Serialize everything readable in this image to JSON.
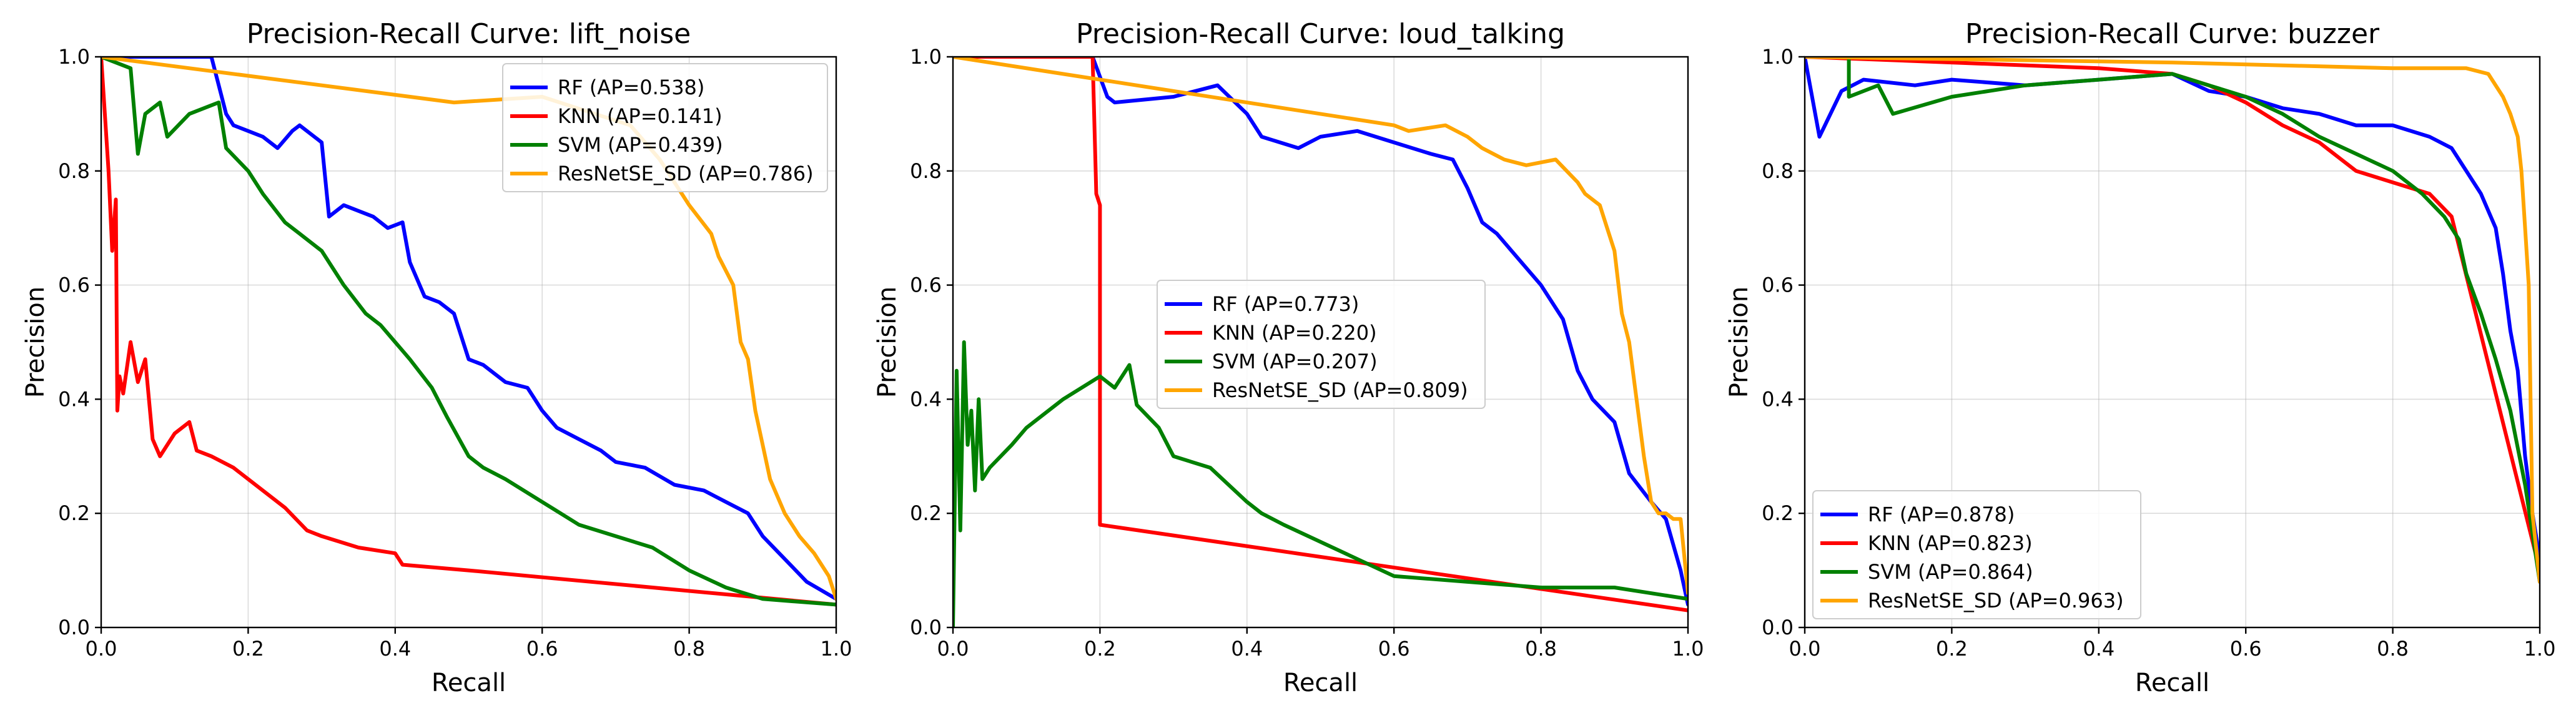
{
  "colors": {
    "RF": "#0000ff",
    "KNN": "#ff0000",
    "SVM": "#008000",
    "ResNetSE_SD": "#ffa500"
  },
  "chart_data": [
    {
      "type": "line",
      "title": "Precision-Recall Curve: lift_noise",
      "xlabel": "Recall",
      "ylabel": "Precision",
      "xlim": [
        0,
        1
      ],
      "ylim": [
        0,
        1
      ],
      "xticks": [
        "0.0",
        "0.2",
        "0.4",
        "0.6",
        "0.8",
        "1.0"
      ],
      "yticks": [
        "0.0",
        "0.2",
        "0.4",
        "0.6",
        "0.8",
        "1.0"
      ],
      "grid": true,
      "legend_position": "top-right",
      "series": [
        {
          "key": "RF",
          "name": "RF (AP=0.538)",
          "x": [
            0.0,
            0.15,
            0.17,
            0.18,
            0.2,
            0.22,
            0.24,
            0.26,
            0.27,
            0.3,
            0.31,
            0.33,
            0.35,
            0.37,
            0.39,
            0.41,
            0.42,
            0.44,
            0.46,
            0.48,
            0.5,
            0.52,
            0.55,
            0.58,
            0.6,
            0.62,
            0.65,
            0.68,
            0.7,
            0.74,
            0.78,
            0.82,
            0.85,
            0.88,
            0.9,
            0.93,
            0.96,
            1.0
          ],
          "y": [
            1.0,
            1.0,
            0.9,
            0.88,
            0.87,
            0.86,
            0.84,
            0.87,
            0.88,
            0.85,
            0.72,
            0.74,
            0.73,
            0.72,
            0.7,
            0.71,
            0.64,
            0.58,
            0.57,
            0.55,
            0.47,
            0.46,
            0.43,
            0.42,
            0.38,
            0.35,
            0.33,
            0.31,
            0.29,
            0.28,
            0.25,
            0.24,
            0.22,
            0.2,
            0.16,
            0.12,
            0.08,
            0.05
          ]
        },
        {
          "key": "KNN",
          "name": "KNN (AP=0.141)",
          "x": [
            0.0,
            0.01,
            0.015,
            0.02,
            0.022,
            0.025,
            0.03,
            0.04,
            0.05,
            0.06,
            0.07,
            0.08,
            0.1,
            0.12,
            0.13,
            0.15,
            0.18,
            0.2,
            0.22,
            0.25,
            0.28,
            0.3,
            0.35,
            0.4,
            0.41,
            0.5,
            1.0
          ],
          "y": [
            1.0,
            0.8,
            0.66,
            0.75,
            0.38,
            0.44,
            0.41,
            0.5,
            0.43,
            0.47,
            0.33,
            0.3,
            0.34,
            0.36,
            0.31,
            0.3,
            0.28,
            0.26,
            0.24,
            0.21,
            0.17,
            0.16,
            0.14,
            0.13,
            0.11,
            0.1,
            0.04
          ]
        },
        {
          "key": "SVM",
          "name": "SVM (AP=0.439)",
          "x": [
            0.0,
            0.04,
            0.05,
            0.06,
            0.08,
            0.09,
            0.12,
            0.16,
            0.17,
            0.2,
            0.22,
            0.25,
            0.27,
            0.3,
            0.33,
            0.36,
            0.38,
            0.4,
            0.42,
            0.45,
            0.47,
            0.5,
            0.52,
            0.55,
            0.6,
            0.65,
            0.7,
            0.75,
            0.8,
            0.85,
            0.9,
            0.95,
            1.0
          ],
          "y": [
            1.0,
            0.98,
            0.83,
            0.9,
            0.92,
            0.86,
            0.9,
            0.92,
            0.84,
            0.8,
            0.76,
            0.71,
            0.69,
            0.66,
            0.6,
            0.55,
            0.53,
            0.5,
            0.47,
            0.42,
            0.37,
            0.3,
            0.28,
            0.26,
            0.22,
            0.18,
            0.16,
            0.14,
            0.1,
            0.07,
            0.05,
            0.045,
            0.04
          ]
        },
        {
          "key": "ResNetSE_SD",
          "name": "ResNetSE_SD (AP=0.786)",
          "x": [
            0.0,
            0.48,
            0.6,
            0.72,
            0.76,
            0.8,
            0.83,
            0.84,
            0.86,
            0.87,
            0.88,
            0.89,
            0.9,
            0.91,
            0.93,
            0.95,
            0.97,
            0.99,
            1.0
          ],
          "y": [
            1.0,
            0.92,
            0.93,
            0.88,
            0.82,
            0.74,
            0.69,
            0.65,
            0.6,
            0.5,
            0.47,
            0.38,
            0.32,
            0.26,
            0.2,
            0.16,
            0.13,
            0.09,
            0.05
          ]
        }
      ]
    },
    {
      "type": "line",
      "title": "Precision-Recall Curve: loud_talking",
      "xlabel": "Recall",
      "ylabel": "Precision",
      "xlim": [
        0,
        1
      ],
      "ylim": [
        0,
        1
      ],
      "xticks": [
        "0.0",
        "0.2",
        "0.4",
        "0.6",
        "0.8",
        "1.0"
      ],
      "yticks": [
        "0.0",
        "0.2",
        "0.4",
        "0.6",
        "0.8",
        "1.0"
      ],
      "grid": true,
      "legend_position": "center",
      "series": [
        {
          "key": "RF",
          "name": "RF (AP=0.773)",
          "x": [
            0.0,
            0.19,
            0.21,
            0.22,
            0.3,
            0.36,
            0.4,
            0.42,
            0.47,
            0.5,
            0.55,
            0.6,
            0.65,
            0.68,
            0.7,
            0.72,
            0.74,
            0.76,
            0.8,
            0.83,
            0.85,
            0.87,
            0.9,
            0.92,
            0.95,
            0.97,
            0.99,
            1.0
          ],
          "y": [
            1.0,
            1.0,
            0.93,
            0.92,
            0.93,
            0.95,
            0.9,
            0.86,
            0.84,
            0.86,
            0.87,
            0.85,
            0.83,
            0.82,
            0.77,
            0.71,
            0.69,
            0.66,
            0.6,
            0.54,
            0.45,
            0.4,
            0.36,
            0.27,
            0.22,
            0.19,
            0.1,
            0.04
          ]
        },
        {
          "key": "KNN",
          "name": "KNN (AP=0.220)",
          "x": [
            0.0,
            0.19,
            0.195,
            0.2,
            0.2,
            1.0
          ],
          "y": [
            1.0,
            1.0,
            0.76,
            0.74,
            0.18,
            0.03
          ]
        },
        {
          "key": "SVM",
          "name": "SVM (AP=0.207)",
          "x": [
            0.0,
            0.005,
            0.01,
            0.015,
            0.02,
            0.025,
            0.03,
            0.035,
            0.04,
            0.05,
            0.08,
            0.1,
            0.15,
            0.2,
            0.22,
            0.24,
            0.25,
            0.28,
            0.3,
            0.35,
            0.4,
            0.42,
            0.45,
            0.5,
            0.55,
            0.6,
            0.7,
            0.8,
            0.9,
            1.0
          ],
          "y": [
            0.0,
            0.45,
            0.17,
            0.5,
            0.32,
            0.38,
            0.24,
            0.4,
            0.26,
            0.28,
            0.32,
            0.35,
            0.4,
            0.44,
            0.42,
            0.46,
            0.39,
            0.35,
            0.3,
            0.28,
            0.22,
            0.2,
            0.18,
            0.15,
            0.12,
            0.09,
            0.08,
            0.07,
            0.07,
            0.05
          ]
        },
        {
          "key": "ResNetSE_SD",
          "name": "ResNetSE_SD (AP=0.809)",
          "x": [
            0.0,
            0.6,
            0.62,
            0.67,
            0.7,
            0.72,
            0.75,
            0.78,
            0.82,
            0.85,
            0.86,
            0.88,
            0.89,
            0.9,
            0.91,
            0.92,
            0.93,
            0.94,
            0.95,
            0.96,
            0.97,
            0.98,
            0.99,
            1.0
          ],
          "y": [
            1.0,
            0.88,
            0.87,
            0.88,
            0.86,
            0.84,
            0.82,
            0.81,
            0.82,
            0.78,
            0.76,
            0.74,
            0.7,
            0.66,
            0.55,
            0.5,
            0.4,
            0.3,
            0.22,
            0.2,
            0.2,
            0.19,
            0.19,
            0.06
          ]
        }
      ]
    },
    {
      "type": "line",
      "title": "Precision-Recall Curve: buzzer",
      "xlabel": "Recall",
      "ylabel": "Precision",
      "xlim": [
        0,
        1
      ],
      "ylim": [
        0,
        1
      ],
      "xticks": [
        "0.0",
        "0.2",
        "0.4",
        "0.6",
        "0.8",
        "1.0"
      ],
      "yticks": [
        "0.0",
        "0.2",
        "0.4",
        "0.6",
        "0.8",
        "1.0"
      ],
      "grid": true,
      "legend_position": "bottom-left",
      "series": [
        {
          "key": "RF",
          "name": "RF (AP=0.878)",
          "x": [
            0.0,
            0.02,
            0.05,
            0.08,
            0.15,
            0.2,
            0.3,
            0.4,
            0.5,
            0.55,
            0.6,
            0.65,
            0.7,
            0.75,
            0.8,
            0.85,
            0.88,
            0.9,
            0.92,
            0.94,
            0.95,
            0.96,
            0.97,
            0.98,
            0.99,
            1.0
          ],
          "y": [
            1.0,
            0.86,
            0.94,
            0.96,
            0.95,
            0.96,
            0.95,
            0.96,
            0.97,
            0.94,
            0.93,
            0.91,
            0.9,
            0.88,
            0.88,
            0.86,
            0.84,
            0.8,
            0.76,
            0.7,
            0.62,
            0.52,
            0.45,
            0.3,
            0.2,
            0.12
          ]
        },
        {
          "key": "KNN",
          "name": "KNN (AP=0.823)",
          "x": [
            0.0,
            0.2,
            0.4,
            0.5,
            0.55,
            0.6,
            0.65,
            0.7,
            0.75,
            0.8,
            0.85,
            0.88,
            1.0
          ],
          "y": [
            1.0,
            0.99,
            0.98,
            0.97,
            0.95,
            0.92,
            0.88,
            0.85,
            0.8,
            0.78,
            0.76,
            0.72,
            0.1
          ]
        },
        {
          "key": "SVM",
          "name": "SVM (AP=0.864)",
          "x": [
            0.0,
            0.06,
            0.06,
            0.1,
            0.12,
            0.2,
            0.3,
            0.4,
            0.5,
            0.55,
            0.6,
            0.65,
            0.7,
            0.75,
            0.8,
            0.84,
            0.87,
            0.89,
            0.9,
            0.92,
            0.94,
            0.96,
            0.98,
            1.0
          ],
          "y": [
            1.0,
            1.0,
            0.93,
            0.95,
            0.9,
            0.93,
            0.95,
            0.96,
            0.97,
            0.95,
            0.93,
            0.9,
            0.86,
            0.83,
            0.8,
            0.76,
            0.72,
            0.68,
            0.62,
            0.55,
            0.47,
            0.38,
            0.25,
            0.08
          ]
        },
        {
          "key": "ResNetSE_SD",
          "name": "ResNetSE_SD (AP=0.963)",
          "x": [
            0.0,
            0.5,
            0.8,
            0.9,
            0.93,
            0.95,
            0.96,
            0.97,
            0.975,
            0.98,
            0.985,
            0.99,
            1.0
          ],
          "y": [
            1.0,
            0.99,
            0.98,
            0.98,
            0.97,
            0.93,
            0.9,
            0.86,
            0.8,
            0.7,
            0.6,
            0.2,
            0.08
          ]
        }
      ]
    }
  ]
}
